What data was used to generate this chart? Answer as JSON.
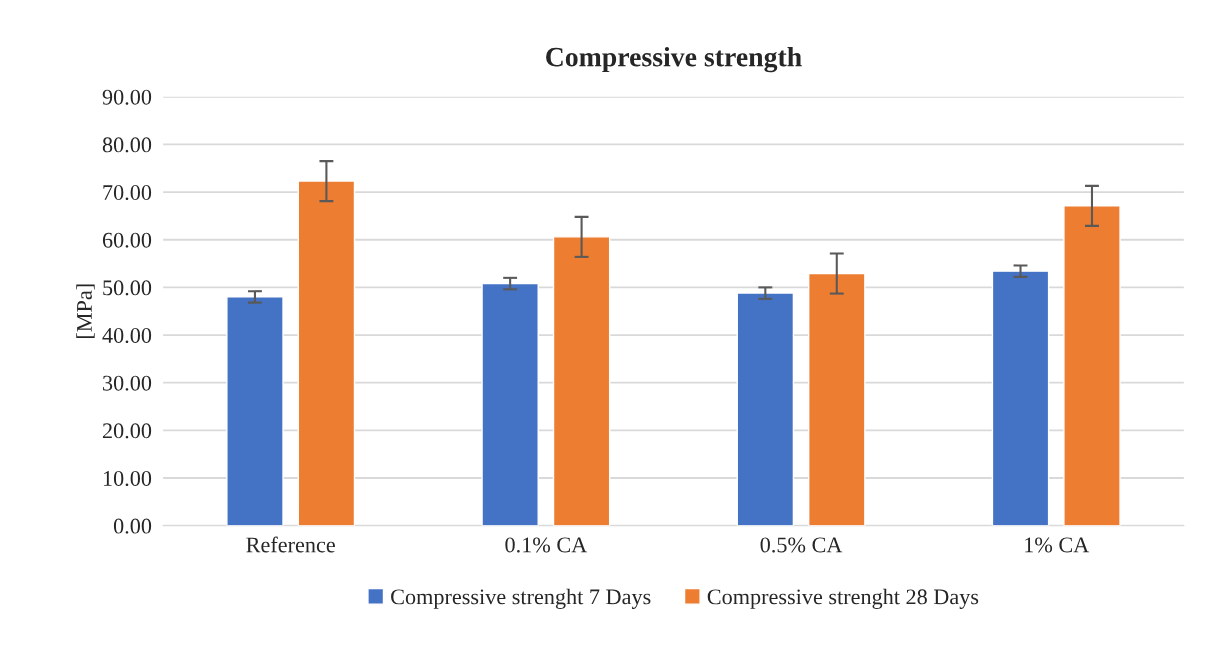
{
  "chart_data": {
    "type": "bar",
    "title": "Compressive strength",
    "ylabel": "[MPa]",
    "categories": [
      "Reference",
      "0.1% CA",
      "0.5% CA",
      "1% CA"
    ],
    "series": [
      {
        "name": "Compressive strenght 7 Days",
        "color": "#4472c4",
        "values": [
          48.0,
          50.8,
          48.8,
          53.4
        ],
        "errors": [
          1.2,
          1.2,
          1.2,
          1.2
        ]
      },
      {
        "name": "Compressive strenght 28 Days",
        "color": "#ed7d31",
        "values": [
          72.3,
          60.6,
          52.9,
          67.1
        ],
        "errors": [
          4.2,
          4.2,
          4.2,
          4.2
        ]
      }
    ],
    "ylim": [
      0,
      90
    ],
    "yticks": [
      {
        "value": 0,
        "label": "0.00"
      },
      {
        "value": 10,
        "label": "10.00"
      },
      {
        "value": 20,
        "label": "20.00"
      },
      {
        "value": 30,
        "label": "30.00"
      },
      {
        "value": 40,
        "label": "40.00"
      },
      {
        "value": 50,
        "label": "50.00"
      },
      {
        "value": 60,
        "label": "60.00"
      },
      {
        "value": 70,
        "label": "70.00"
      },
      {
        "value": 80,
        "label": "80.00"
      },
      {
        "value": 90,
        "label": "90.00"
      }
    ],
    "grid": "y",
    "legend": "bottom"
  }
}
